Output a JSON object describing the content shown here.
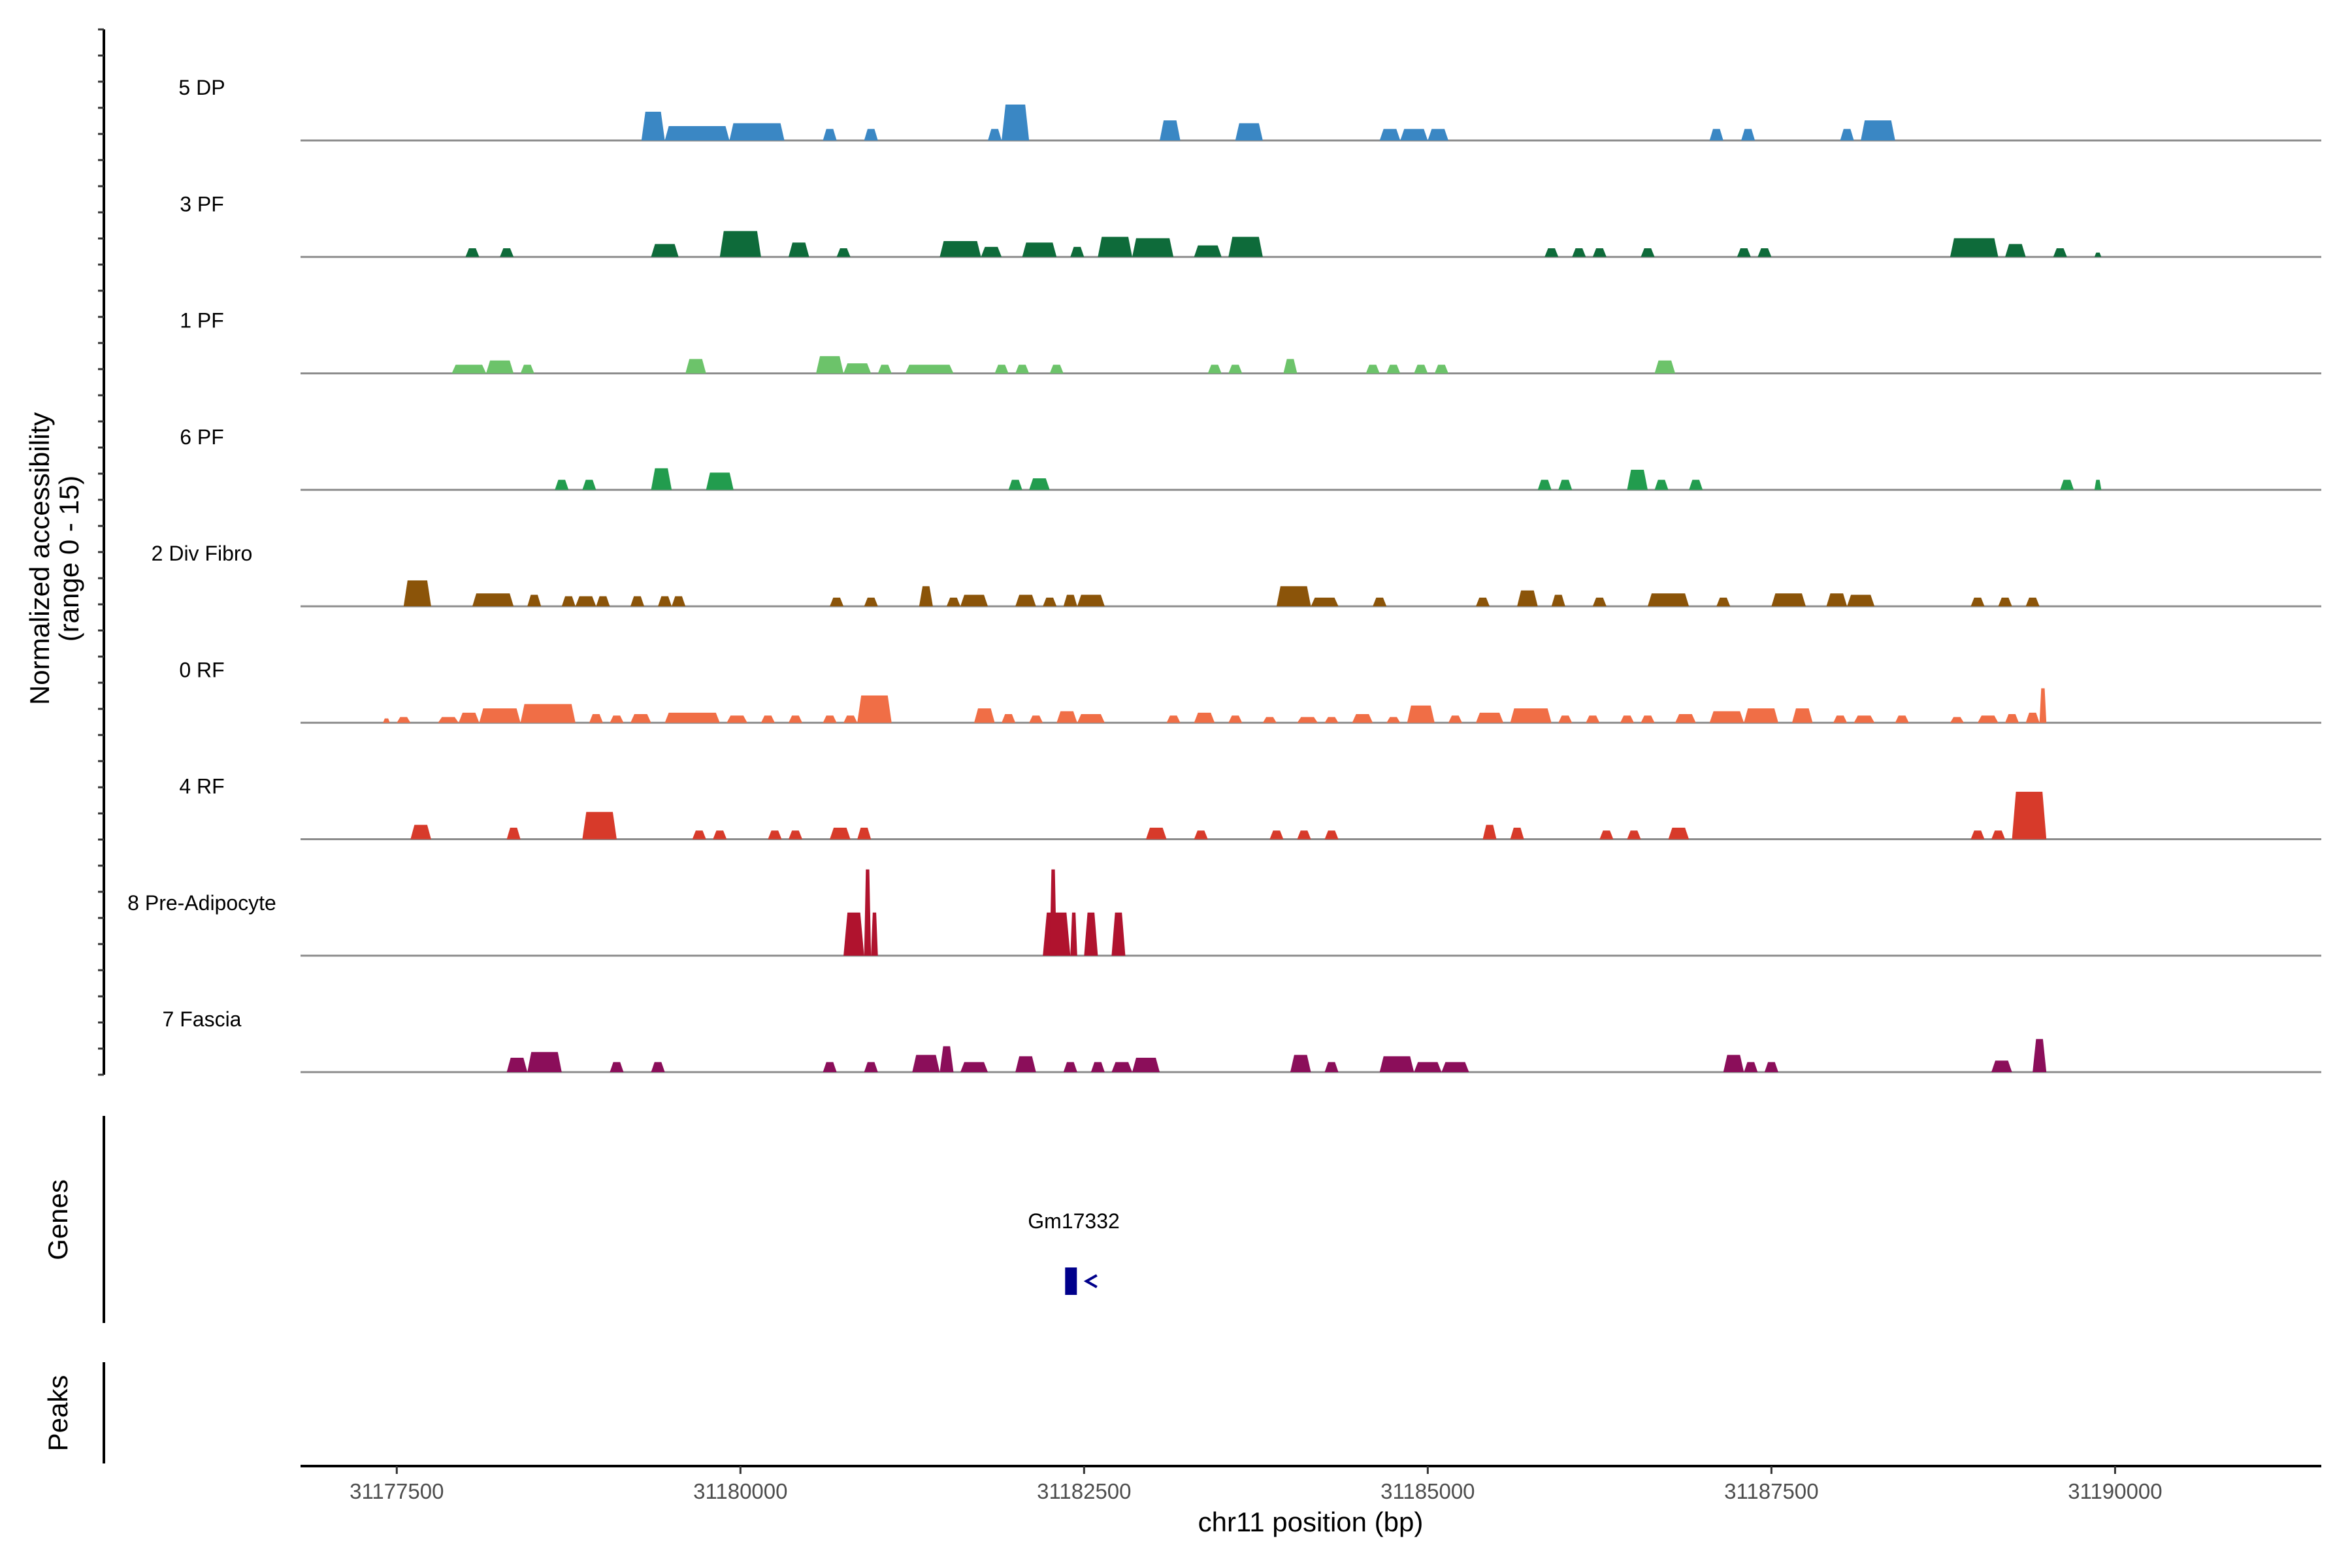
{
  "chart_data": {
    "type": "area",
    "title": "",
    "xlabel": "chr11 position (bp)",
    "ylabel_line1": "Normalized accessibility",
    "ylabel_line2": "(range 0 - 15)",
    "y_range": [
      0,
      15
    ],
    "xlim": [
      31176800,
      31191500
    ],
    "x_ticks": [
      {
        "value": 31177500,
        "label": "31177500"
      },
      {
        "value": 31180000,
        "label": "31180000"
      },
      {
        "value": 31182500,
        "label": "31182500"
      },
      {
        "value": 31185000,
        "label": "31185000"
      },
      {
        "value": 31187500,
        "label": "31187500"
      },
      {
        "value": 31190000,
        "label": "31190000"
      }
    ],
    "series": [
      {
        "name": "5 DP",
        "color": "#3a87c4",
        "peaks": [
          [
            31179280,
            31179450,
            2.0
          ],
          [
            31179450,
            31179920,
            1.0
          ],
          [
            31179920,
            31180320,
            1.2
          ],
          [
            31180600,
            31180700,
            0.8
          ],
          [
            31180900,
            31181000,
            0.8
          ],
          [
            31181800,
            31181900,
            0.8
          ],
          [
            31181900,
            31182100,
            2.5
          ],
          [
            31183050,
            31183200,
            1.4
          ],
          [
            31183600,
            31183800,
            1.2
          ],
          [
            31184650,
            31184800,
            0.8
          ],
          [
            31184800,
            31185000,
            0.8
          ],
          [
            31185000,
            31185150,
            0.8
          ],
          [
            31187050,
            31187150,
            0.8
          ],
          [
            31187280,
            31187380,
            0.8
          ],
          [
            31188000,
            31188100,
            0.8
          ],
          [
            31188150,
            31188400,
            1.4
          ]
        ]
      },
      {
        "name": "3 PF",
        "color": "#0e6b3a",
        "peaks": [
          [
            31178000,
            31178100,
            0.6
          ],
          [
            31178250,
            31178350,
            0.6
          ],
          [
            31179350,
            31179550,
            0.9
          ],
          [
            31179850,
            31180150,
            1.8
          ],
          [
            31180350,
            31180500,
            1.0
          ],
          [
            31180700,
            31180800,
            0.6
          ],
          [
            31181450,
            31181750,
            1.1
          ],
          [
            31181750,
            31181900,
            0.7
          ],
          [
            31182050,
            31182300,
            1.0
          ],
          [
            31182400,
            31182500,
            0.7
          ],
          [
            31182600,
            31182850,
            1.4
          ],
          [
            31182850,
            31183150,
            1.3
          ],
          [
            31183300,
            31183500,
            0.8
          ],
          [
            31183550,
            31183800,
            1.4
          ],
          [
            31185850,
            31185950,
            0.6
          ],
          [
            31186050,
            31186150,
            0.6
          ],
          [
            31186200,
            31186300,
            0.6
          ],
          [
            31186550,
            31186650,
            0.6
          ],
          [
            31187250,
            31187350,
            0.6
          ],
          [
            31187400,
            31187500,
            0.6
          ],
          [
            31188800,
            31189150,
            1.3
          ],
          [
            31189200,
            31189350,
            0.9
          ],
          [
            31189550,
            31189650,
            0.6
          ],
          [
            31189850,
            31189900,
            0.3
          ]
        ]
      },
      {
        "name": "1 PF",
        "color": "#6cc36a",
        "peaks": [
          [
            31177900,
            31178150,
            0.6
          ],
          [
            31178150,
            31178350,
            0.9
          ],
          [
            31178400,
            31178500,
            0.6
          ],
          [
            31179600,
            31179750,
            1.0
          ],
          [
            31180550,
            31180750,
            1.2
          ],
          [
            31180750,
            31180950,
            0.7
          ],
          [
            31181000,
            31181100,
            0.6
          ],
          [
            31181200,
            31181550,
            0.6
          ],
          [
            31181850,
            31181950,
            0.6
          ],
          [
            31182000,
            31182100,
            0.6
          ],
          [
            31182250,
            31182350,
            0.6
          ],
          [
            31183400,
            31183500,
            0.6
          ],
          [
            31183550,
            31183650,
            0.6
          ],
          [
            31183950,
            31184050,
            1.0
          ],
          [
            31184550,
            31184650,
            0.6
          ],
          [
            31184700,
            31184800,
            0.6
          ],
          [
            31184900,
            31185000,
            0.6
          ],
          [
            31185050,
            31185150,
            0.6
          ],
          [
            31186650,
            31186800,
            0.9
          ]
        ]
      },
      {
        "name": "6 PF",
        "color": "#229c4e",
        "peaks": [
          [
            31178650,
            31178750,
            0.7
          ],
          [
            31178850,
            31178950,
            0.7
          ],
          [
            31179350,
            31179500,
            1.5
          ],
          [
            31179750,
            31179950,
            1.2
          ],
          [
            31181950,
            31182050,
            0.7
          ],
          [
            31182100,
            31182250,
            0.8
          ],
          [
            31185800,
            31185900,
            0.7
          ],
          [
            31185950,
            31186050,
            0.7
          ],
          [
            31186450,
            31186600,
            1.4
          ],
          [
            31186650,
            31186750,
            0.7
          ],
          [
            31186900,
            31187000,
            0.7
          ],
          [
            31189600,
            31189700,
            0.7
          ],
          [
            31189850,
            31189900,
            0.7
          ]
        ]
      },
      {
        "name": "2 Div Fibro",
        "color": "#8b5409",
        "peaks": [
          [
            31177550,
            31177750,
            1.8
          ],
          [
            31178050,
            31178350,
            0.9
          ],
          [
            31178450,
            31178550,
            0.8
          ],
          [
            31178700,
            31178800,
            0.7
          ],
          [
            31178800,
            31178950,
            0.7
          ],
          [
            31178950,
            31179050,
            0.7
          ],
          [
            31179200,
            31179300,
            0.7
          ],
          [
            31179400,
            31179500,
            0.7
          ],
          [
            31179500,
            31179600,
            0.7
          ],
          [
            31180650,
            31180750,
            0.6
          ],
          [
            31180900,
            31181000,
            0.6
          ],
          [
            31181300,
            31181400,
            1.4
          ],
          [
            31181500,
            31181600,
            0.6
          ],
          [
            31181600,
            31181800,
            0.8
          ],
          [
            31182000,
            31182150,
            0.8
          ],
          [
            31182200,
            31182300,
            0.6
          ],
          [
            31182350,
            31182450,
            0.8
          ],
          [
            31182450,
            31182650,
            0.8
          ],
          [
            31183900,
            31184150,
            1.4
          ],
          [
            31184150,
            31184350,
            0.6
          ],
          [
            31184600,
            31184700,
            0.6
          ],
          [
            31185350,
            31185450,
            0.6
          ],
          [
            31185650,
            31185800,
            1.1
          ],
          [
            31185900,
            31186000,
            0.8
          ],
          [
            31186200,
            31186300,
            0.6
          ],
          [
            31186600,
            31186900,
            0.9
          ],
          [
            31187100,
            31187200,
            0.6
          ],
          [
            31187500,
            31187750,
            0.9
          ],
          [
            31187900,
            31188050,
            0.9
          ],
          [
            31188050,
            31188250,
            0.8
          ],
          [
            31188950,
            31189050,
            0.6
          ],
          [
            31189150,
            31189250,
            0.6
          ],
          [
            31189350,
            31189450,
            0.6
          ]
        ]
      },
      {
        "name": "0 RF",
        "color": "#f06e46",
        "peaks": [
          [
            31177400,
            31177450,
            0.3
          ],
          [
            31177500,
            31177600,
            0.4
          ],
          [
            31177800,
            31177950,
            0.4
          ],
          [
            31177950,
            31178100,
            0.7
          ],
          [
            31178100,
            31178400,
            1.0
          ],
          [
            31178400,
            31178800,
            1.3
          ],
          [
            31178900,
            31179000,
            0.6
          ],
          [
            31179050,
            31179150,
            0.5
          ],
          [
            31179200,
            31179350,
            0.6
          ],
          [
            31179450,
            31179850,
            0.7
          ],
          [
            31179900,
            31180050,
            0.5
          ],
          [
            31180150,
            31180250,
            0.5
          ],
          [
            31180350,
            31180450,
            0.5
          ],
          [
            31180600,
            31180700,
            0.5
          ],
          [
            31180750,
            31180850,
            0.5
          ],
          [
            31180850,
            31181100,
            1.9
          ],
          [
            31181700,
            31181850,
            1.0
          ],
          [
            31181900,
            31182000,
            0.6
          ],
          [
            31182100,
            31182200,
            0.5
          ],
          [
            31182300,
            31182450,
            0.8
          ],
          [
            31182450,
            31182650,
            0.6
          ],
          [
            31183100,
            31183200,
            0.5
          ],
          [
            31183300,
            31183450,
            0.7
          ],
          [
            31183550,
            31183650,
            0.5
          ],
          [
            31183800,
            31183900,
            0.4
          ],
          [
            31184050,
            31184200,
            0.4
          ],
          [
            31184250,
            31184350,
            0.4
          ],
          [
            31184450,
            31184600,
            0.6
          ],
          [
            31184700,
            31184800,
            0.4
          ],
          [
            31184850,
            31185050,
            1.2
          ],
          [
            31185150,
            31185250,
            0.5
          ],
          [
            31185350,
            31185550,
            0.7
          ],
          [
            31185600,
            31185900,
            1.0
          ],
          [
            31185950,
            31186050,
            0.5
          ],
          [
            31186150,
            31186250,
            0.5
          ],
          [
            31186400,
            31186500,
            0.5
          ],
          [
            31186550,
            31186650,
            0.5
          ],
          [
            31186800,
            31186950,
            0.6
          ],
          [
            31187050,
            31187300,
            0.8
          ],
          [
            31187300,
            31187550,
            1.0
          ],
          [
            31187650,
            31187800,
            1.0
          ],
          [
            31187950,
            31188050,
            0.5
          ],
          [
            31188100,
            31188250,
            0.5
          ],
          [
            31188400,
            31188500,
            0.5
          ],
          [
            31188800,
            31188900,
            0.4
          ],
          [
            31189000,
            31189150,
            0.5
          ],
          [
            31189200,
            31189300,
            0.6
          ],
          [
            31189350,
            31189450,
            0.7
          ],
          [
            31189450,
            31189500,
            2.4
          ]
        ]
      },
      {
        "name": "4 RF",
        "color": "#d73a2a",
        "peaks": [
          [
            31177600,
            31177750,
            1.0
          ],
          [
            31178300,
            31178400,
            0.8
          ],
          [
            31178850,
            31179100,
            1.9
          ],
          [
            31179650,
            31179750,
            0.6
          ],
          [
            31179800,
            31179900,
            0.6
          ],
          [
            31180200,
            31180300,
            0.6
          ],
          [
            31180350,
            31180450,
            0.6
          ],
          [
            31180650,
            31180800,
            0.8
          ],
          [
            31180850,
            31180950,
            0.8
          ],
          [
            31182950,
            31183100,
            0.8
          ],
          [
            31183300,
            31183400,
            0.6
          ],
          [
            31183850,
            31183950,
            0.6
          ],
          [
            31184050,
            31184150,
            0.6
          ],
          [
            31184250,
            31184350,
            0.6
          ],
          [
            31185400,
            31185500,
            1.0
          ],
          [
            31185600,
            31185700,
            0.8
          ],
          [
            31186250,
            31186350,
            0.6
          ],
          [
            31186450,
            31186550,
            0.6
          ],
          [
            31186750,
            31186900,
            0.8
          ],
          [
            31188950,
            31189050,
            0.6
          ],
          [
            31189100,
            31189200,
            0.6
          ],
          [
            31189250,
            31189500,
            3.3
          ]
        ]
      },
      {
        "name": "8 Pre-Adipocyte",
        "color": "#b0132e",
        "peaks": [
          [
            31180750,
            31180900,
            3.0
          ],
          [
            31180900,
            31180950,
            6.0
          ],
          [
            31180950,
            31180950,
            0
          ],
          [
            31180950,
            31181000,
            3.0
          ],
          [
            31182200,
            31182400,
            3.0
          ],
          [
            31182250,
            31182300,
            6.0
          ],
          [
            31182400,
            31182450,
            3.0
          ],
          [
            31182500,
            31182600,
            3.0
          ],
          [
            31182700,
            31182800,
            3.0
          ]
        ]
      },
      {
        "name": "7 Fascia",
        "color": "#8b0e5a",
        "peaks": [
          [
            31178300,
            31178450,
            1.0
          ],
          [
            31178450,
            31178700,
            1.4
          ],
          [
            31179050,
            31179150,
            0.7
          ],
          [
            31179350,
            31179450,
            0.7
          ],
          [
            31180600,
            31180700,
            0.7
          ],
          [
            31180900,
            31181000,
            0.7
          ],
          [
            31181250,
            31181450,
            1.2
          ],
          [
            31181450,
            31181550,
            1.8
          ],
          [
            31181600,
            31181800,
            0.7
          ],
          [
            31182000,
            31182150,
            1.1
          ],
          [
            31182350,
            31182450,
            0.7
          ],
          [
            31182550,
            31182650,
            0.7
          ],
          [
            31182700,
            31182850,
            0.7
          ],
          [
            31182850,
            31183050,
            1.0
          ],
          [
            31184000,
            31184150,
            1.2
          ],
          [
            31184250,
            31184350,
            0.7
          ],
          [
            31184650,
            31184900,
            1.1
          ],
          [
            31184900,
            31185100,
            0.7
          ],
          [
            31185100,
            31185300,
            0.7
          ],
          [
            31187150,
            31187300,
            1.2
          ],
          [
            31187300,
            31187400,
            0.7
          ],
          [
            31187450,
            31187550,
            0.7
          ],
          [
            31189100,
            31189250,
            0.8
          ],
          [
            31189400,
            31189500,
            2.3
          ]
        ]
      }
    ],
    "genes": [
      {
        "name": "Gm17332",
        "start": 31182400,
        "end": 31182450,
        "strand": "-"
      }
    ],
    "gene_track_title": "Genes",
    "peak_track_title": "Peaks"
  }
}
